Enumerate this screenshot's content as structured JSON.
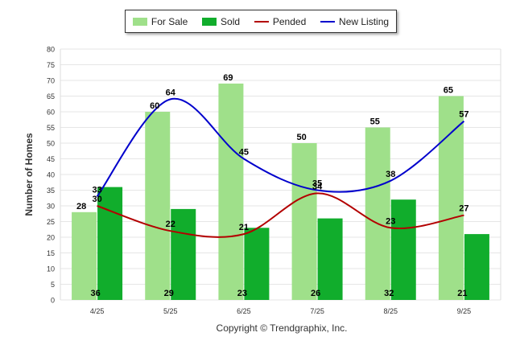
{
  "chart_data": {
    "type": "bar",
    "title": "",
    "xlabel": "",
    "ylabel": "Number of Homes",
    "ylim": [
      0,
      80
    ],
    "yticks": [
      0,
      5,
      10,
      15,
      20,
      25,
      30,
      35,
      40,
      45,
      50,
      55,
      60,
      65,
      70,
      75,
      80
    ],
    "grid": true,
    "legend": "top-center",
    "categories": [
      "4/25",
      "5/25",
      "6/25",
      "7/25",
      "8/25",
      "9/25"
    ],
    "series": [
      {
        "name": "For Sale",
        "kind": "bar",
        "color": "#9fe08a",
        "values": [
          28,
          60,
          69,
          50,
          55,
          65
        ]
      },
      {
        "name": "Sold",
        "kind": "bar",
        "color": "#11ad2c",
        "values": [
          36,
          29,
          23,
          26,
          32,
          21
        ]
      },
      {
        "name": "Pended",
        "kind": "line",
        "color": "#b30000",
        "values": [
          30,
          22,
          21,
          34,
          23,
          27
        ]
      },
      {
        "name": "New Listing",
        "kind": "line",
        "color": "#0000cc",
        "values": [
          33,
          64,
          45,
          35,
          38,
          57
        ]
      }
    ],
    "footer": "Copyright © Trendgraphix, Inc."
  }
}
